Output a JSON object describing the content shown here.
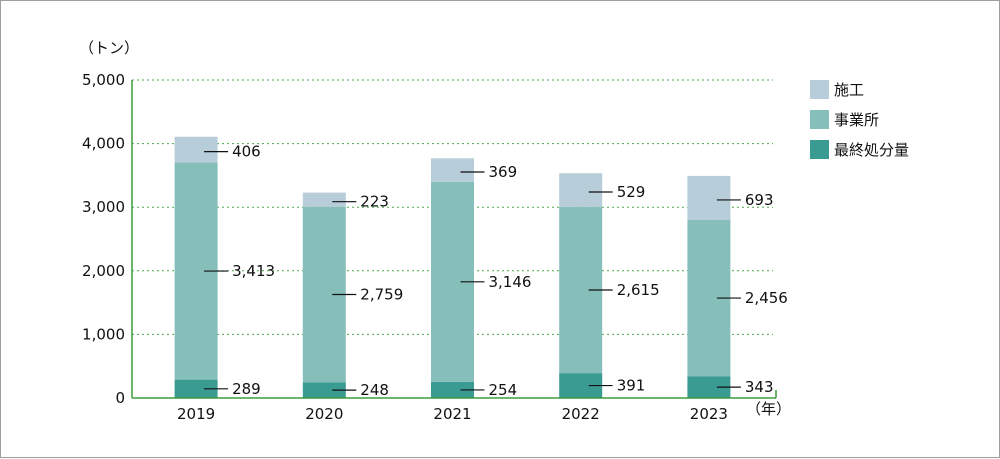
{
  "chart_data": {
    "type": "bar",
    "stacked": true,
    "y_unit": "（トン）",
    "x_unit": "（年）",
    "categories": [
      "2019",
      "2020",
      "2021",
      "2022",
      "2023"
    ],
    "ylim": [
      0,
      5000
    ],
    "yticks": [
      "0",
      "1,000",
      "2,000",
      "3,000",
      "4,000",
      "5,000"
    ],
    "grid": true,
    "legend_position": "right",
    "series": [
      {
        "name": "最終処分量",
        "color": "#3a9b93",
        "values": [
          289,
          248,
          254,
          391,
          343
        ],
        "labels": [
          "289",
          "248",
          "254",
          "391",
          "343"
        ]
      },
      {
        "name": "事業所",
        "color": "#86bfba",
        "values": [
          3413,
          2759,
          3146,
          2615,
          2456
        ],
        "labels": [
          "3,413",
          "2,759",
          "3,146",
          "2,615",
          "2,456"
        ]
      },
      {
        "name": "施工",
        "color": "#b7cdda",
        "values": [
          406,
          223,
          369,
          529,
          693
        ],
        "labels": [
          "406",
          "223",
          "369",
          "529",
          "693"
        ]
      }
    ],
    "legend_order": [
      2,
      1,
      0
    ],
    "axis_color": "#3d9b3d"
  }
}
